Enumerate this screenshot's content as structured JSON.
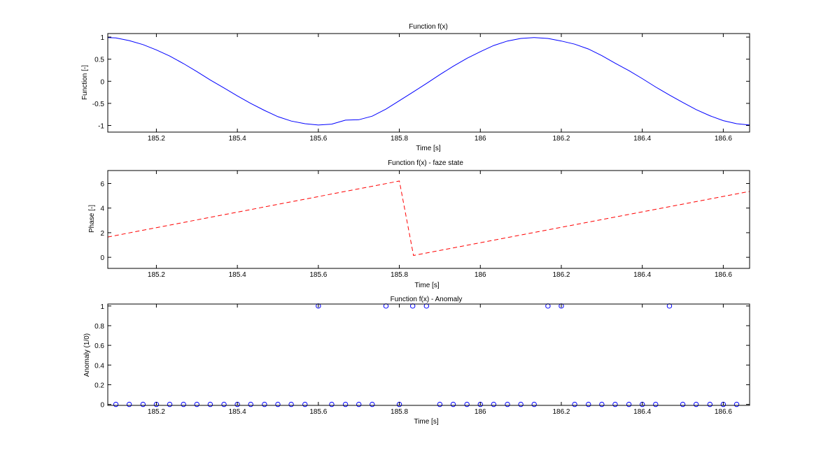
{
  "figure": {
    "background": "#ffffff",
    "axes_color": "#000000"
  },
  "chart_data": [
    {
      "type": "line",
      "title": "Function f(x)",
      "xlabel": "Time [s]",
      "ylabel": "Function [-]",
      "xlim": [
        185.08,
        186.665
      ],
      "ylim": [
        -1.15,
        1.08
      ],
      "xticks": [
        185.2,
        185.4,
        185.6,
        185.8,
        186,
        186.2,
        186.4,
        186.6
      ],
      "xtick_labels": [
        "185.2",
        "185.4",
        "185.6",
        "185.8",
        "186",
        "186.2",
        "186.4",
        "186.6"
      ],
      "yticks": [
        -1,
        -0.5,
        0,
        0.5,
        1
      ],
      "ytick_labels": [
        "-1",
        "-0.5",
        "0",
        "0.5",
        "1"
      ],
      "grid": false,
      "series": [
        {
          "color": "#0000ff",
          "line_style": "solid",
          "x": [
            185.08,
            185.1,
            185.133,
            185.167,
            185.2,
            185.233,
            185.267,
            185.3,
            185.333,
            185.367,
            185.4,
            185.433,
            185.467,
            185.5,
            185.533,
            185.567,
            185.6,
            185.633,
            185.667,
            185.7,
            185.733,
            185.767,
            185.8,
            185.833,
            185.867,
            185.9,
            185.933,
            185.967,
            186.0,
            186.033,
            186.067,
            186.1,
            186.133,
            186.167,
            186.2,
            186.233,
            186.267,
            186.3,
            186.333,
            186.367,
            186.4,
            186.433,
            186.467,
            186.5,
            186.533,
            186.567,
            186.6,
            186.633,
            186.665
          ],
          "y": [
            0.99,
            0.98,
            0.92,
            0.83,
            0.71,
            0.57,
            0.4,
            0.22,
            0.03,
            -0.15,
            -0.33,
            -0.5,
            -0.66,
            -0.8,
            -0.9,
            -0.96,
            -0.99,
            -0.97,
            -0.88,
            -0.87,
            -0.79,
            -0.63,
            -0.44,
            -0.25,
            -0.05,
            0.15,
            0.34,
            0.52,
            0.67,
            0.81,
            0.91,
            0.97,
            0.99,
            0.97,
            0.91,
            0.84,
            0.73,
            0.58,
            0.41,
            0.24,
            0.06,
            -0.13,
            -0.31,
            -0.48,
            -0.64,
            -0.78,
            -0.89,
            -0.96,
            -0.99
          ]
        }
      ]
    },
    {
      "type": "line",
      "title": "Function f(x) - faze state",
      "xlabel": "Time [s]",
      "ylabel": "Phase [-]",
      "xlim": [
        185.08,
        186.665
      ],
      "ylim": [
        -0.9,
        7.05
      ],
      "xticks": [
        185.2,
        185.4,
        185.6,
        185.8,
        186,
        186.2,
        186.4,
        186.6
      ],
      "xtick_labels": [
        "185.2",
        "185.4",
        "185.6",
        "185.8",
        "186",
        "186.2",
        "186.4",
        "186.6"
      ],
      "yticks": [
        0,
        2,
        4,
        6
      ],
      "ytick_labels": [
        "0",
        "2",
        "4",
        "6"
      ],
      "grid": false,
      "series": [
        {
          "color": "#ff0000",
          "line_style": "dashed",
          "x": [
            185.08,
            185.8,
            185.835,
            186.665
          ],
          "y": [
            1.65,
            6.2,
            0.15,
            5.35
          ]
        }
      ]
    },
    {
      "type": "scatter",
      "title": "Function f(x) - Anomaly",
      "xlabel": "Time [s]",
      "ylabel": "Anomaly (1/0)",
      "xlim": [
        185.08,
        186.665
      ],
      "ylim": [
        -0.01,
        1.02
      ],
      "xticks": [
        185.2,
        185.4,
        185.6,
        185.8,
        186,
        186.2,
        186.4,
        186.6
      ],
      "xtick_labels": [
        "185.2",
        "185.4",
        "185.6",
        "185.8",
        "186",
        "186.2",
        "186.4",
        "186.6"
      ],
      "yticks": [
        0,
        0.2,
        0.4,
        0.6,
        0.8,
        1
      ],
      "ytick_labels": [
        "0",
        "0.2",
        "0.4",
        "0.6",
        "0.8",
        "1"
      ],
      "grid": false,
      "series": [
        {
          "color": "#0000ff",
          "marker": "circle-open",
          "x": [
            185.1,
            185.133,
            185.167,
            185.2,
            185.233,
            185.267,
            185.3,
            185.333,
            185.367,
            185.4,
            185.433,
            185.467,
            185.5,
            185.533,
            185.567,
            185.6,
            185.633,
            185.667,
            185.7,
            185.733,
            185.767,
            185.8,
            185.833,
            185.867,
            185.9,
            185.933,
            185.967,
            186.0,
            186.033,
            186.067,
            186.1,
            186.133,
            186.167,
            186.2,
            186.233,
            186.267,
            186.3,
            186.333,
            186.367,
            186.4,
            186.433,
            186.467,
            186.5,
            186.533,
            186.567,
            186.6,
            186.633
          ],
          "y": [
            0,
            0,
            0,
            0,
            0,
            0,
            0,
            0,
            0,
            0,
            0,
            0,
            0,
            0,
            0,
            1,
            0,
            0,
            0,
            0,
            1,
            0,
            1,
            1,
            0,
            0,
            0,
            0,
            0,
            0,
            0,
            0,
            1,
            1,
            0,
            0,
            0,
            0,
            0,
            0,
            0,
            1,
            0,
            0,
            0,
            0,
            0
          ]
        }
      ]
    }
  ]
}
